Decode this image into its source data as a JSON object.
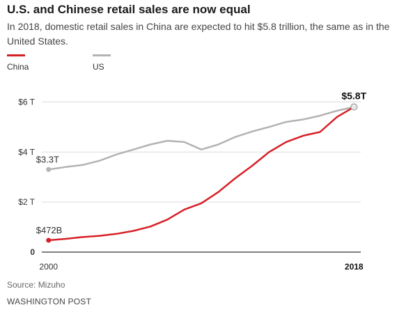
{
  "header": {
    "title": "U.S. and Chinese retail sales are now equal",
    "subtitle": "In 2018, domestic retail sales in China are expected to hit $5.8 trillion, the same as in the United States."
  },
  "footer": {
    "source": "Source: Mizuho",
    "credit": "WASHINGTON POST"
  },
  "chart_data": {
    "type": "line",
    "x": [
      2000,
      2001,
      2002,
      2003,
      2004,
      2005,
      2006,
      2007,
      2008,
      2009,
      2010,
      2011,
      2012,
      2013,
      2014,
      2015,
      2016,
      2017,
      2018
    ],
    "x_tick_labels": [
      "2000",
      "2018"
    ],
    "y_tick_labels": [
      "0",
      "$2 T",
      "$4 T",
      "$6 T"
    ],
    "y_ticks": [
      0,
      2,
      4,
      6
    ],
    "ylim": [
      0,
      6.4
    ],
    "xlim": [
      1999.6,
      2018.4
    ],
    "grid": "horizontal",
    "legend_position": "top-left",
    "series": [
      {
        "name": "China",
        "color": "#d62027",
        "values": [
          0.472,
          0.53,
          0.6,
          0.65,
          0.73,
          0.85,
          1.02,
          1.3,
          1.7,
          1.95,
          2.4,
          2.95,
          3.45,
          4.0,
          4.4,
          4.65,
          4.8,
          5.4,
          5.8
        ]
      },
      {
        "name": "US",
        "color": "#b3b3b3",
        "values": [
          3.3,
          3.4,
          3.48,
          3.65,
          3.9,
          4.1,
          4.3,
          4.45,
          4.4,
          4.1,
          4.3,
          4.6,
          4.82,
          5.0,
          5.2,
          5.3,
          5.45,
          5.65,
          5.8
        ]
      }
    ],
    "annotations": {
      "china_start": "$472B",
      "us_start": "$3.3T",
      "end": "$5.8T"
    }
  }
}
